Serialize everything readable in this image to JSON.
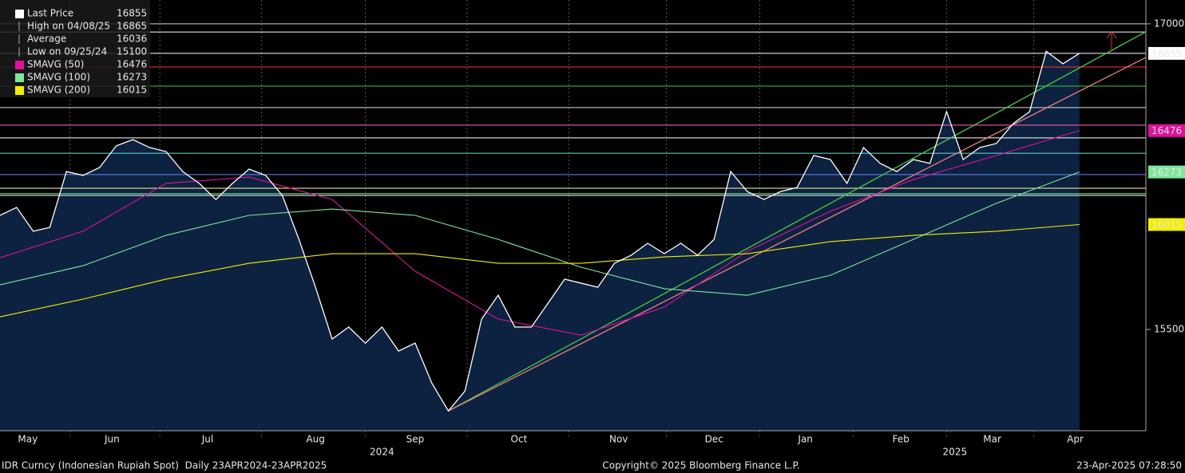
{
  "chart_data": {
    "type": "line",
    "xlim": [
      0,
      276
    ],
    "ylim": [
      15003,
      17117
    ],
    "yticks": [
      15500,
      17000
    ],
    "xticks": [
      {
        "value": 6.7,
        "label": "May"
      },
      {
        "value": 27,
        "label": "Jun"
      },
      {
        "value": 50,
        "label": "Jul"
      },
      {
        "value": 76,
        "label": "Aug"
      },
      {
        "value": 100,
        "label": "Sep"
      },
      {
        "value": 125,
        "label": "Oct"
      },
      {
        "value": 149,
        "label": "Nov"
      },
      {
        "value": 172,
        "label": "Dec"
      },
      {
        "value": 194,
        "label": "Jan"
      },
      {
        "value": 217,
        "label": "Feb"
      },
      {
        "value": 239,
        "label": "Mar"
      },
      {
        "value": 259,
        "label": "Apr"
      }
    ],
    "year_ticks": [
      {
        "value": 92,
        "label": "2024"
      },
      {
        "value": 230,
        "label": "2025"
      }
    ],
    "series": [
      {
        "name": "Last Price",
        "legend_value": "16855",
        "color": "#ffffff",
        "area_color": "#0c2240",
        "x": [
          0,
          4,
          8,
          12,
          16,
          20,
          24,
          28,
          32,
          36,
          40,
          44,
          48,
          52,
          56,
          60,
          64,
          68,
          72,
          76,
          80,
          84,
          88,
          92,
          96,
          100,
          104,
          108,
          112,
          116,
          120,
          124,
          128,
          132,
          136,
          140,
          144,
          148,
          152,
          156,
          160,
          164,
          168,
          172,
          176,
          180,
          184,
          188,
          192,
          196,
          200,
          204,
          208,
          212,
          216,
          220,
          224,
          228,
          232,
          236,
          240,
          244,
          248,
          252,
          256,
          260
        ],
        "values": [
          16060,
          16099,
          15982,
          16001,
          16275,
          16256,
          16295,
          16401,
          16432,
          16393,
          16373,
          16275,
          16217,
          16138,
          16217,
          16287,
          16256,
          16158,
          15942,
          15707,
          15453,
          15512,
          15433,
          15512,
          15394,
          15433,
          15237,
          15100,
          15198,
          15551,
          15668,
          15512,
          15512,
          15629,
          15747,
          15727,
          15707,
          15825,
          15864,
          15923,
          15872,
          15923,
          15864,
          15942,
          16275,
          16177,
          16138,
          16177,
          16197,
          16354,
          16334,
          16217,
          16393,
          16315,
          16275,
          16334,
          16315,
          16569,
          16334,
          16393,
          16413,
          16510,
          16569,
          16865,
          16804,
          16855
        ]
      },
      {
        "name": "SMAVG (50)",
        "legend_value": "16476",
        "color": "#e0109a",
        "x": [
          0,
          20,
          40,
          60,
          80,
          100,
          120,
          140,
          160,
          180,
          200,
          220,
          240,
          260
        ],
        "values": [
          15852,
          15982,
          16217,
          16248,
          16138,
          15786,
          15551,
          15472,
          15610,
          15884,
          16080,
          16236,
          16354,
          16476
        ]
      },
      {
        "name": "SMAVG (100)",
        "legend_value": "16273",
        "color": "#7ee89a",
        "x": [
          0,
          20,
          40,
          60,
          80,
          100,
          120,
          140,
          160,
          180,
          200,
          220,
          240,
          260
        ],
        "values": [
          15719,
          15813,
          15962,
          16060,
          16091,
          16060,
          15942,
          15805,
          15700,
          15668,
          15766,
          15942,
          16119,
          16273
        ]
      },
      {
        "name": "SMAVG (200)",
        "legend_value": "16015",
        "color": "#f0f000",
        "x": [
          0,
          20,
          40,
          60,
          80,
          100,
          120,
          140,
          160,
          180,
          200,
          220,
          240,
          260
        ],
        "values": [
          15562,
          15649,
          15747,
          15825,
          15872,
          15872,
          15825,
          15825,
          15856,
          15872,
          15931,
          15962,
          15982,
          16015
        ]
      }
    ],
    "stats": [
      {
        "label": "High on 04/08/25",
        "value": "16865"
      },
      {
        "label": "Average",
        "value": "16036"
      },
      {
        "label": "Low on 09/25/24",
        "value": "15100"
      }
    ],
    "reference_lines": [
      {
        "value": 17000,
        "color": "#d8d8a0"
      },
      {
        "value": 16960,
        "color": "#ffffff"
      },
      {
        "value": 16855,
        "color": "#ffffff"
      },
      {
        "value": 16788,
        "color": "#ff3030"
      },
      {
        "value": 16694,
        "color": "#33cc33"
      },
      {
        "value": 16589,
        "color": "#dddddd"
      },
      {
        "value": 16503,
        "color": "#ff66cc"
      },
      {
        "value": 16440,
        "color": "#ffffff"
      },
      {
        "value": 16365,
        "color": "#66dddd"
      },
      {
        "value": 16260,
        "color": "#6688ff"
      },
      {
        "value": 16193,
        "color": "#ffff99"
      },
      {
        "value": 16166,
        "color": "#66ff99"
      },
      {
        "value": 16158,
        "color": "#ffffff"
      }
    ],
    "trend_lines": [
      {
        "color": "#44cc44",
        "x": [
          108,
          276
        ],
        "values": [
          15100,
          16961
        ]
      },
      {
        "color": "#f08080",
        "x": [
          108,
          276
        ],
        "values": [
          15100,
          16835
        ]
      }
    ],
    "footer": {
      "left": "IDR Curncy (Indonesian Rupiah Spot)  Daily 23APR2024-23APR2025",
      "center": "Copyright© 2025 Bloomberg Finance L.P.",
      "right": "23-Apr-2025 07:28:50"
    }
  }
}
